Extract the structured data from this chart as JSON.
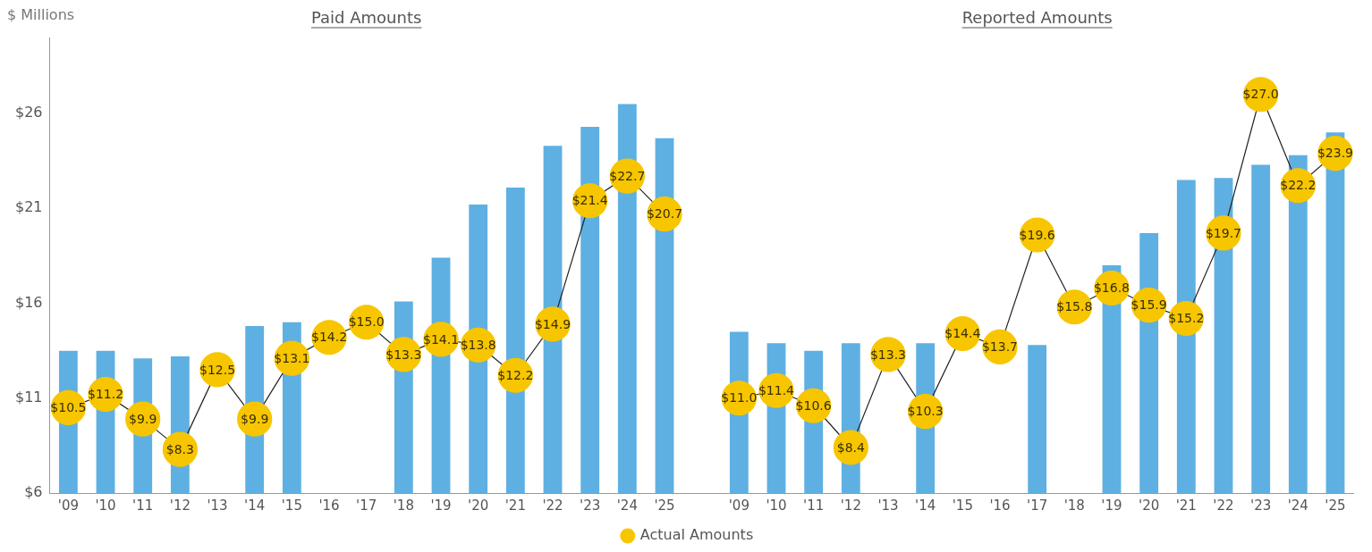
{
  "chart_data": {
    "type": "bar",
    "ylabel": "$ Millions",
    "annotations": [
      "Paid Amounts",
      "Reported Amounts"
    ],
    "categories": [
      "'09",
      "'10",
      "'11",
      "'12",
      "'13",
      "'14",
      "'15",
      "'16",
      "'17",
      "'18",
      "'19",
      "'20",
      "'21",
      "'22",
      "'23",
      "'24",
      "'25",
      null,
      "'09",
      "'10",
      "'11",
      "'12",
      "'13",
      "'14",
      "'15",
      "'16",
      "'17",
      "'18",
      "'19",
      "'20",
      "'21",
      "'22",
      "'23",
      "'24",
      "'25"
    ],
    "series": [
      {
        "color": "#5eb0e2",
        "values": [
          13.5,
          13.5,
          13.1,
          13.2,
          null,
          14.8,
          15.0,
          null,
          null,
          16.1,
          18.4,
          21.2,
          22.1,
          24.3,
          25.3,
          26.5,
          24.7,
          null,
          14.5,
          13.9,
          13.5,
          13.9,
          null,
          13.9,
          null,
          null,
          13.8,
          null,
          18.0,
          19.7,
          22.5,
          22.6,
          23.3,
          23.8,
          25.0
        ]
      },
      {
        "type": "line",
        "name": "Actual Amounts",
        "color": "#f7c600",
        "values": [
          10.5,
          11.2,
          9.9,
          8.3,
          12.5,
          9.9,
          13.1,
          14.2,
          15.0,
          13.3,
          14.1,
          13.8,
          12.2,
          14.9,
          21.4,
          22.7,
          20.7,
          null,
          11.0,
          11.4,
          10.6,
          8.4,
          13.3,
          10.3,
          14.4,
          13.7,
          19.6,
          15.8,
          16.8,
          15.9,
          15.2,
          19.7,
          27.0,
          22.2,
          23.9
        ],
        "value_labels": [
          "$10.5",
          "$11.2",
          "$9.9",
          "$8.3",
          "$12.5",
          "$9.9",
          "$13.1",
          "$14.2",
          "$15.0",
          "$13.3",
          "$14.1",
          "$13.8",
          "$12.2",
          "$14.9",
          "$21.4",
          "$22.7",
          "$20.7",
          null,
          "$11.0",
          "$11.4",
          "$10.6",
          "$8.4",
          "$13.3",
          "$10.3",
          "$14.4",
          "$13.7",
          "$19.6",
          "$15.8",
          "$16.8",
          "$15.9",
          "$15.2",
          "$19.7",
          "$27.0",
          "$22.2",
          "$23.9"
        ]
      }
    ],
    "ylim": [
      6,
      30
    ],
    "yticks": [
      {
        "value": 6,
        "label": "$6"
      },
      {
        "value": 11,
        "label": "$11"
      },
      {
        "value": 16,
        "label": "$16"
      },
      {
        "value": 21,
        "label": "$21"
      },
      {
        "value": 26,
        "label": "$26"
      }
    ],
    "grid": false,
    "legend": "bottom",
    "marker": "circle"
  }
}
